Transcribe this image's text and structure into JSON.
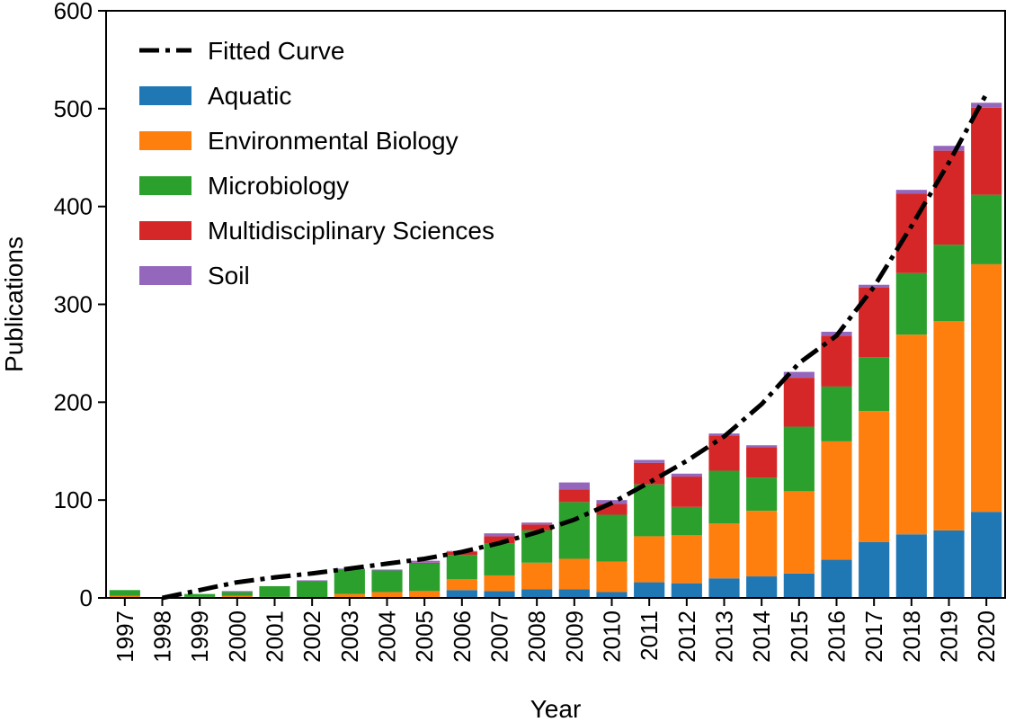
{
  "chart_data": {
    "type": "bar",
    "stacked": true,
    "xlabel": "Year",
    "ylabel": "Publications",
    "ylim": [
      0,
      600
    ],
    "yticks": [
      0,
      100,
      200,
      300,
      400,
      500,
      600
    ],
    "categories": [
      "1997",
      "1998",
      "1999",
      "2000",
      "2001",
      "2002",
      "2003",
      "2004",
      "2005",
      "2006",
      "2007",
      "2008",
      "2009",
      "2010",
      "2011",
      "2012",
      "2013",
      "2014",
      "2015",
      "2016",
      "2017",
      "2018",
      "2019",
      "2020"
    ],
    "series": [
      {
        "name": "Aquatic",
        "color": "#1f77b4",
        "values": [
          0,
          0,
          0,
          0,
          0,
          0,
          0,
          0,
          0,
          8,
          7,
          9,
          9,
          6,
          16,
          15,
          20,
          22,
          25,
          39,
          57,
          65,
          69,
          88
        ]
      },
      {
        "name": "Environmental Biology",
        "color": "#ff7f0e",
        "values": [
          2,
          0,
          1,
          2,
          1,
          0,
          4,
          6,
          7,
          11,
          16,
          27,
          31,
          31,
          47,
          49,
          56,
          67,
          84,
          121,
          134,
          204,
          214,
          253
        ]
      },
      {
        "name": "Microbiology",
        "color": "#2ca02c",
        "values": [
          6,
          0,
          3,
          4,
          11,
          17,
          25,
          22,
          28,
          25,
          33,
          33,
          58,
          48,
          53,
          29,
          54,
          34,
          66,
          56,
          55,
          63,
          78,
          71
        ]
      },
      {
        "name": "Multidisciplinary Sciences",
        "color": "#d62728",
        "values": [
          0,
          0,
          0,
          0,
          0,
          0,
          0,
          0,
          1,
          3,
          7,
          6,
          13,
          11,
          22,
          31,
          36,
          31,
          50,
          52,
          71,
          81,
          96,
          89
        ]
      },
      {
        "name": "Soil",
        "color": "#9467bd",
        "values": [
          0,
          0,
          0,
          1,
          0,
          1,
          1,
          1,
          2,
          1,
          3,
          2,
          7,
          4,
          3,
          3,
          2,
          2,
          6,
          4,
          3,
          4,
          5,
          5
        ]
      }
    ],
    "fitted_curve": {
      "name": "Fitted Curve",
      "color": "#000000",
      "style": "dash-dot",
      "x": [
        "1998",
        "1999",
        "2000",
        "2001",
        "2002",
        "2003",
        "2004",
        "2005",
        "2006",
        "2007",
        "2008",
        "2009",
        "2010",
        "2011",
        "2012",
        "2013",
        "2014",
        "2015",
        "2016",
        "2017",
        "2018",
        "2019",
        "2020"
      ],
      "y": [
        0,
        8,
        16,
        21,
        25,
        30,
        35,
        40,
        47,
        56,
        67,
        80,
        97,
        118,
        140,
        165,
        198,
        240,
        268,
        318,
        380,
        445,
        515
      ]
    },
    "legend": {
      "placement": "top-left",
      "entries": [
        "Fitted Curve",
        "Aquatic",
        "Environmental Biology",
        "Microbiology",
        "Multidisciplinary Sciences",
        "Soil"
      ]
    },
    "grid": false
  }
}
